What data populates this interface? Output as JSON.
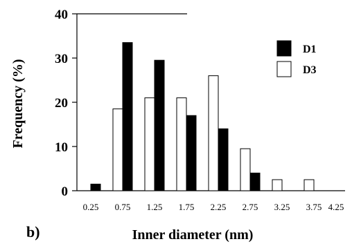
{
  "chart_data": {
    "type": "bar",
    "categories": [
      "0.25",
      "0.75",
      "1.25",
      "1.75",
      "2.25",
      "2.75",
      "3.25",
      "3.75",
      "4.25"
    ],
    "series": [
      {
        "name": "D1",
        "values": [
          1.5,
          33.5,
          29.5,
          17,
          14,
          4,
          0,
          0,
          0
        ],
        "fill": "#000000"
      },
      {
        "name": "D3",
        "values": [
          0,
          18.5,
          21,
          21,
          26,
          9.5,
          2.5,
          2.5,
          0
        ],
        "fill": "#ffffff"
      }
    ],
    "xlabel": "Inner diameter (nm)",
    "ylabel": "Frequency (%)",
    "ylim": [
      0,
      40
    ],
    "yticks": [
      "0",
      "10",
      "20",
      "30",
      "40"
    ],
    "legend_position": "top-right",
    "grid": false
  },
  "panel_label": "b)"
}
